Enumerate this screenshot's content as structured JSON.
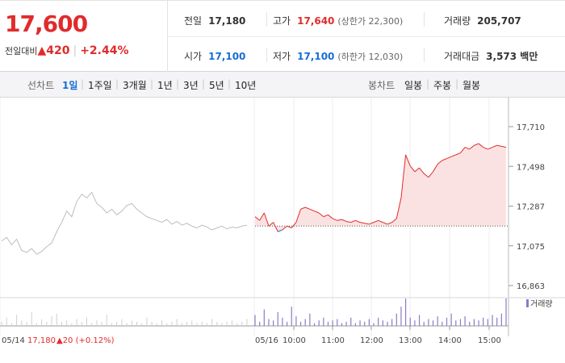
{
  "quote": {
    "price": "17,600",
    "change_label": "전일대비",
    "change_value": "▲420",
    "change_rate": "+2.44%"
  },
  "info": {
    "prev_close_label": "전일",
    "prev_close": "17,180",
    "high_label": "고가",
    "high": "17,640",
    "upper_limit": "(상한가 22,300)",
    "volume_label": "거래량",
    "volume": "205,707",
    "open_label": "시가",
    "open": "17,100",
    "low_label": "저가",
    "low": "17,100",
    "lower_limit": "(하한가 12,030)",
    "amount_label": "거래대금",
    "amount": "3,573 백만"
  },
  "toolbar": {
    "line_title": "선차트",
    "line_periods": [
      "1일",
      "1주일",
      "3개월",
      "1년",
      "3년",
      "5년",
      "10년"
    ],
    "candle_title": "봉차트",
    "candle_periods": [
      "일봉",
      "주봉",
      "월봉"
    ]
  },
  "colors": {
    "up": "#e12b2b",
    "down": "#1a6dd4",
    "volume": "#8c7bc8"
  },
  "chart_data": {
    "type": "line",
    "ylim": [
      16863,
      17710
    ],
    "y_ticks": [
      "17,710",
      "17,498",
      "17,287",
      "17,075",
      "16,863"
    ],
    "prev_close": 17180,
    "prev_day": {
      "date": "05/14",
      "label": "05/14",
      "close_text": "17,180",
      "change_text": "▲20 (+0.12%)",
      "values": [
        17100,
        17120,
        17080,
        17110,
        17050,
        17040,
        17060,
        17030,
        17045,
        17070,
        17090,
        17150,
        17200,
        17260,
        17230,
        17310,
        17350,
        17330,
        17360,
        17300,
        17280,
        17250,
        17270,
        17240,
        17260,
        17290,
        17300,
        17270,
        17250,
        17230,
        17220,
        17210,
        17200,
        17215,
        17190,
        17205,
        17185,
        17195,
        17180,
        17170,
        17185,
        17175,
        17160,
        17170,
        17180,
        17165,
        17175,
        17170,
        17180,
        17185
      ]
    },
    "today": {
      "date": "05/16",
      "label": "05/16",
      "time_ticks": [
        "10:00",
        "11:00",
        "12:00",
        "13:00",
        "14:00",
        "15:00"
      ],
      "values": [
        17230,
        17210,
        17250,
        17180,
        17200,
        17150,
        17160,
        17180,
        17170,
        17200,
        17270,
        17280,
        17270,
        17260,
        17250,
        17230,
        17240,
        17220,
        17210,
        17215,
        17205,
        17200,
        17210,
        17200,
        17195,
        17190,
        17200,
        17210,
        17200,
        17190,
        17200,
        17220,
        17330,
        17560,
        17500,
        17470,
        17490,
        17460,
        17440,
        17470,
        17510,
        17530,
        17540,
        17550,
        17560,
        17570,
        17600,
        17590,
        17610,
        17620,
        17600,
        17590,
        17600,
        17610,
        17605,
        17600
      ],
      "volume": [
        8,
        3,
        12,
        5,
        4,
        10,
        6,
        3,
        14,
        7,
        3,
        5,
        9,
        2,
        4,
        6,
        3,
        4,
        5,
        2,
        3,
        6,
        2,
        4,
        3,
        5,
        2,
        6,
        4,
        3,
        5,
        9,
        14,
        20,
        6,
        4,
        8,
        3,
        5,
        4,
        7,
        3,
        6,
        9,
        4,
        5,
        7,
        3,
        5,
        4,
        6,
        5,
        8,
        6,
        9,
        20
      ]
    },
    "volume_legend": "거래량",
    "prev_volume": [
      3,
      6,
      2,
      8,
      4,
      3,
      10,
      2,
      5,
      3,
      7,
      9,
      3,
      4,
      2,
      5,
      3,
      6,
      2,
      4,
      3,
      8,
      2,
      3,
      5,
      2,
      4,
      3,
      2,
      6,
      3,
      2,
      4,
      2,
      3,
      5,
      2,
      3,
      4,
      2,
      3,
      2,
      5,
      3,
      2,
      3,
      4,
      2,
      3,
      5
    ]
  }
}
